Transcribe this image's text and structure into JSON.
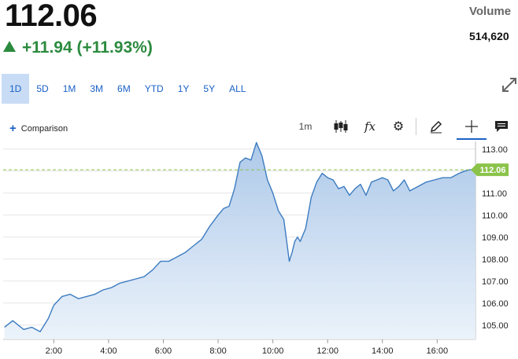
{
  "quote": {
    "price": "112.06",
    "change": "+11.94 (+11.93%)",
    "change_color": "#2b8a3e",
    "direction_icon": "triangle-up-icon",
    "volume_label": "Volume",
    "volume_value": "514,620"
  },
  "range_tabs": [
    {
      "label": "1D",
      "active": true
    },
    {
      "label": "5D",
      "active": false
    },
    {
      "label": "1M",
      "active": false
    },
    {
      "label": "3M",
      "active": false
    },
    {
      "label": "6M",
      "active": false
    },
    {
      "label": "YTD",
      "active": false
    },
    {
      "label": "1Y",
      "active": false
    },
    {
      "label": "5Y",
      "active": false
    },
    {
      "label": "ALL",
      "active": false
    }
  ],
  "toolbar": {
    "comparison_label": "Comparison",
    "interval_label": "1m",
    "icons": [
      "candlestick-icon",
      "fx-indicator-icon",
      "gear-icon",
      "pencil-icon",
      "crosshair-icon",
      "note-icon"
    ],
    "active_tool": "crosshair-icon"
  },
  "colors": {
    "accent": "#1a61c7",
    "line": "#3d7cc0",
    "price_tag": "#8bc34a",
    "reference_line": "#8bc34a"
  },
  "chart_data": {
    "type": "area",
    "xlabel": "",
    "ylabel": "",
    "x_ticks": [
      "2:00",
      "4:00",
      "6:00",
      "8:00",
      "10:00",
      "12:00",
      "14:00",
      "16:00"
    ],
    "y_ticks": [
      "105.00",
      "106.00",
      "107.00",
      "108.00",
      "109.00",
      "110.00",
      "111.00",
      "112.00",
      "113.00"
    ],
    "xlim": [
      0.15,
      17.4
    ],
    "ylim": [
      104.35,
      113.35
    ],
    "last_price_label": "112.06",
    "last_price": 112.06,
    "grid": "horizontal",
    "series": [
      {
        "x": [
          0.2,
          0.5,
          0.9,
          1.2,
          1.5,
          1.8,
          2.0,
          2.3,
          2.6,
          2.9,
          3.2,
          3.5,
          3.8,
          4.1,
          4.4,
          4.7,
          5.0,
          5.3,
          5.6,
          5.9,
          6.2,
          6.5,
          6.8,
          7.1,
          7.4,
          7.7,
          8.0,
          8.2,
          8.4,
          8.6,
          8.8,
          9.0,
          9.2,
          9.4,
          9.6,
          9.8,
          10.0,
          10.2,
          10.4,
          10.6,
          10.7,
          10.8,
          10.9,
          11.0,
          11.2,
          11.4,
          11.6,
          11.8,
          12.0,
          12.2,
          12.4,
          12.6,
          12.8,
          13.0,
          13.2,
          13.4,
          13.6,
          13.8,
          14.0,
          14.2,
          14.4,
          14.6,
          14.8,
          15.0,
          15.3,
          15.6,
          15.9,
          16.2,
          16.5,
          16.8,
          17.0,
          17.2,
          17.4
        ],
        "values": [
          104.9,
          105.2,
          104.8,
          104.9,
          104.7,
          105.3,
          105.9,
          106.3,
          106.4,
          106.2,
          106.3,
          106.4,
          106.6,
          106.7,
          106.9,
          107.0,
          107.1,
          107.2,
          107.5,
          107.9,
          107.9,
          108.1,
          108.3,
          108.6,
          108.9,
          109.5,
          110.0,
          110.3,
          110.4,
          111.2,
          112.4,
          112.6,
          112.5,
          113.3,
          112.7,
          111.6,
          111.0,
          110.2,
          109.8,
          107.9,
          108.3,
          108.8,
          109.0,
          108.8,
          109.4,
          110.8,
          111.5,
          111.9,
          111.7,
          111.6,
          111.2,
          111.3,
          110.9,
          111.2,
          111.4,
          110.9,
          111.5,
          111.6,
          111.7,
          111.6,
          111.1,
          111.3,
          111.6,
          111.1,
          111.3,
          111.5,
          111.6,
          111.7,
          111.7,
          111.9,
          112.0,
          112.06,
          112.06
        ]
      }
    ]
  }
}
